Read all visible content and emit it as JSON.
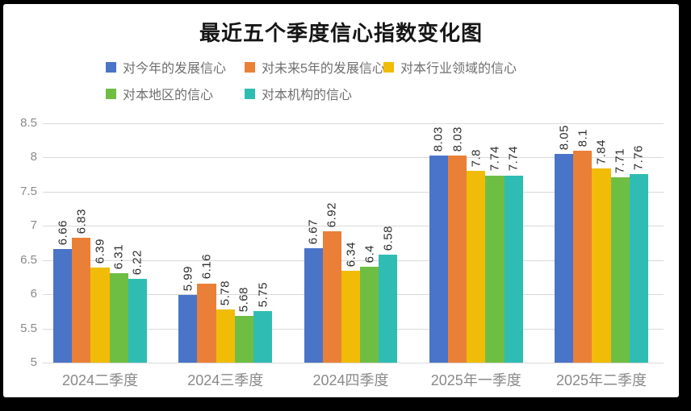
{
  "title": "最近五个季度信心指数变化图",
  "frame": {
    "border_color": "#000000",
    "canvas_background": "#ffffff"
  },
  "chart_data": {
    "type": "bar",
    "title": "最近五个季度信心指数变化图",
    "categories": [
      "2024二季度",
      "2024三季度",
      "2024四季度",
      "2025年一季度",
      "2025年二季度"
    ],
    "series": [
      {
        "name": "对今年的发展信心",
        "color": "#4a74c8",
        "values": [
          6.66,
          5.99,
          6.67,
          8.03,
          8.05
        ]
      },
      {
        "name": "对未来5年的发展信心",
        "color": "#ea8038",
        "values": [
          6.83,
          6.16,
          6.92,
          8.03,
          8.1
        ]
      },
      {
        "name": "对本行业领域的信心",
        "color": "#f0bc08",
        "values": [
          6.39,
          5.78,
          6.34,
          7.8,
          7.84
        ]
      },
      {
        "name": "对本地区的信心",
        "color": "#6fbe44",
        "values": [
          6.31,
          5.68,
          6.4,
          7.74,
          7.71
        ]
      },
      {
        "name": "对本机构的信心",
        "color": "#2fbdb3",
        "values": [
          6.22,
          5.75,
          6.58,
          7.74,
          7.76
        ]
      }
    ],
    "xlabel": "",
    "ylabel": "",
    "ylim": [
      5,
      8.5
    ],
    "y_ticks": [
      8.5,
      8,
      7.5,
      7,
      6.5,
      6,
      5.5,
      5
    ],
    "grid": true,
    "gridline_color": "#d9d9d9",
    "legend_position": "top",
    "legend_rows": [
      [
        0,
        1,
        2
      ],
      [
        3,
        4
      ]
    ],
    "data_labels": true,
    "data_label_rotation_degrees": 90
  }
}
